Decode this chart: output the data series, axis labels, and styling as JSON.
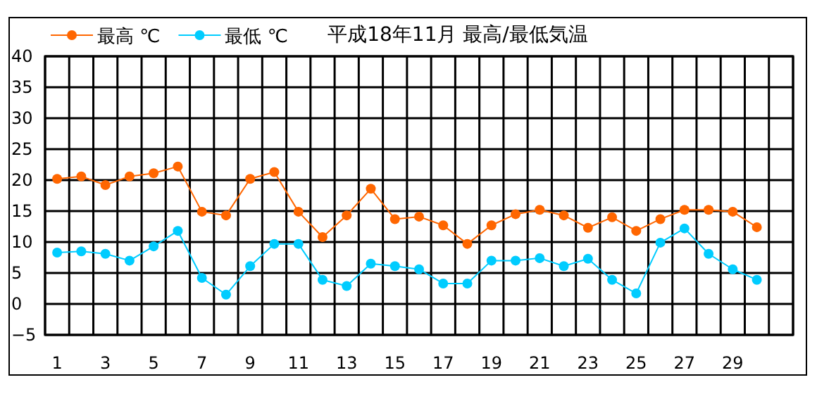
{
  "chart_data": {
    "type": "line",
    "title": "平成18年11月 最高/最低気温",
    "x": [
      1,
      2,
      3,
      4,
      5,
      6,
      7,
      8,
      9,
      10,
      11,
      12,
      13,
      14,
      15,
      16,
      17,
      18,
      19,
      20,
      21,
      22,
      23,
      24,
      25,
      26,
      27,
      28,
      29,
      30
    ],
    "xlim": [
      0.5,
      31.5
    ],
    "xticks": [
      1,
      3,
      5,
      7,
      9,
      11,
      13,
      15,
      17,
      19,
      21,
      23,
      25,
      27,
      29
    ],
    "series": [
      {
        "name": "最高 ℃",
        "color": "#ff6600",
        "values": [
          20.2,
          20.6,
          19.2,
          20.6,
          21.1,
          22.2,
          14.9,
          14.3,
          20.2,
          21.3,
          14.9,
          10.8,
          14.3,
          18.6,
          13.7,
          14.1,
          12.7,
          9.7,
          12.7,
          14.5,
          15.2,
          14.3,
          12.3,
          14.0,
          11.8,
          13.7,
          15.2,
          15.2,
          14.9,
          12.4
        ]
      },
      {
        "name": "最低 ℃",
        "color": "#00ccff",
        "values": [
          8.3,
          8.5,
          8.1,
          7.0,
          9.3,
          11.8,
          4.2,
          1.5,
          6.1,
          9.7,
          9.7,
          3.9,
          2.9,
          6.5,
          6.1,
          5.6,
          3.3,
          3.3,
          7.0,
          7.0,
          7.4,
          6.1,
          7.3,
          3.9,
          1.7,
          9.9,
          12.2,
          8.1,
          5.6,
          3.9
        ]
      }
    ],
    "ylim": [
      -5,
      40
    ],
    "yticks": [
      -5,
      0,
      5,
      10,
      15,
      20,
      25,
      30,
      35,
      40
    ],
    "grid": true,
    "legend": "top left",
    "marker": "circle",
    "line_style": "solid"
  }
}
